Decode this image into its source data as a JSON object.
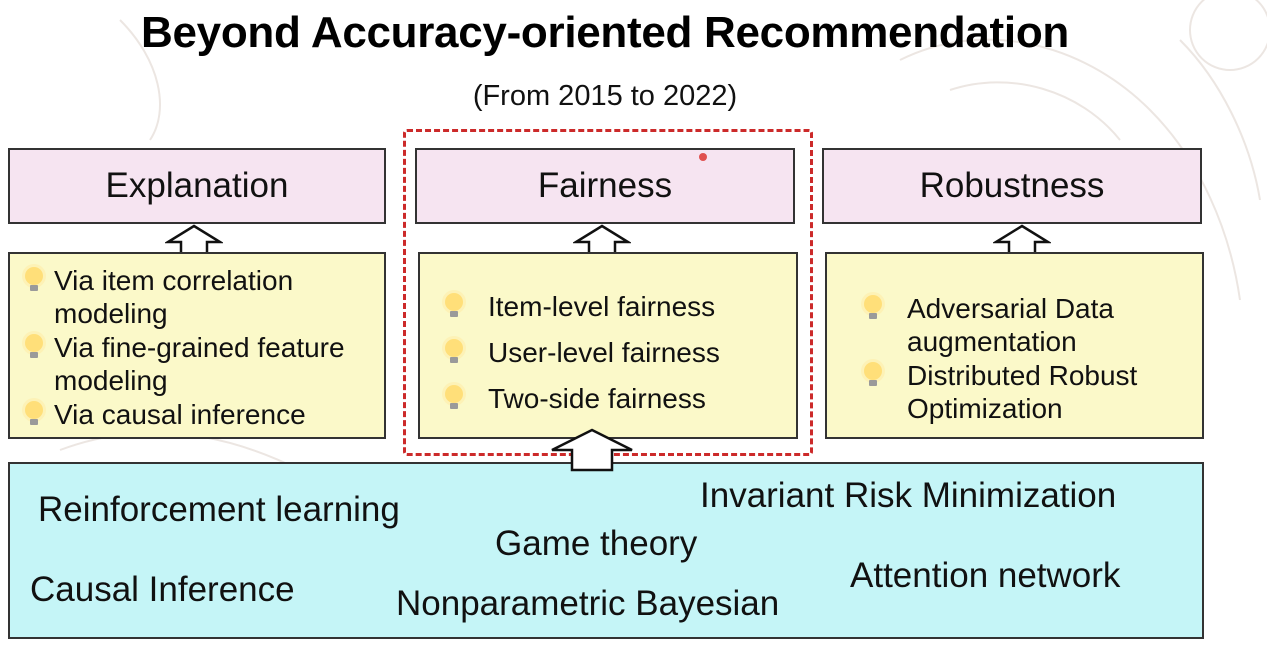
{
  "title": "Beyond Accuracy-oriented Recommendation",
  "subtitle": "(From 2015 to 2022)",
  "columns": [
    {
      "heading": "Explanation",
      "items": [
        "Via item correlation modeling",
        "Via fine-grained feature modeling",
        "Via causal inference"
      ]
    },
    {
      "heading": "Fairness",
      "items": [
        "Item-level fairness",
        "User-level fairness",
        "Two-side fairness"
      ]
    },
    {
      "heading": "Robustness",
      "items": [
        "Adversarial Data augmentation",
        "Distributed Robust Optimization"
      ]
    }
  ],
  "techniques": {
    "reinforcement": "Reinforcement learning",
    "irm": "Invariant Risk Minimization",
    "game": "Game theory",
    "causal": "Causal Inference",
    "attention": "Attention network",
    "bayesian": "Nonparametric Bayesian"
  },
  "colors": {
    "heading_bg": "#f6e4f1",
    "list_bg": "#fbf9c9",
    "base_bg": "#c5f5f7",
    "highlight_border": "#cc2a2a"
  },
  "icons": {
    "bullet": "lightbulb-icon",
    "connector": "up-arrow-icon"
  }
}
